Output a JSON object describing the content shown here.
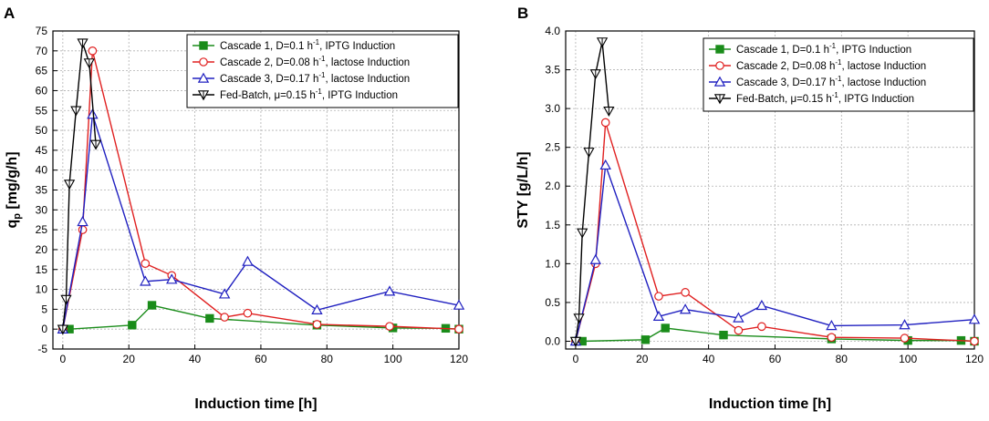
{
  "panels": [
    {
      "letter": "A",
      "chart_data": {
        "type": "line",
        "xlabel": "Induction time [h]",
        "ylabel_main": "q",
        "ylabel_sub": "p",
        "ylabel_rest": " [mg/g/h]",
        "xlim": [
          -3,
          120
        ],
        "ylim": [
          -5,
          75
        ],
        "xticks": [
          0,
          20,
          40,
          60,
          80,
          100,
          120
        ],
        "yticks": [
          -5,
          0,
          5,
          10,
          15,
          20,
          25,
          30,
          35,
          40,
          45,
          50,
          55,
          60,
          65,
          70,
          75
        ],
        "grid": true,
        "legend_position": "top-right",
        "series": [
          {
            "legend_pre": "Cascade 1, D=0.1 h",
            "legend_post": ",   IPTG Induction",
            "color": "#1a8c1a",
            "marker": "square",
            "x": [
              0,
              2,
              21,
              27,
              44.5,
              77,
              100,
              116,
              120
            ],
            "y": [
              0,
              0,
              1,
              6,
              2.7,
              1,
              0.3,
              0.2,
              0
            ]
          },
          {
            "legend_pre": "Cascade 2, D=0.08 h",
            "legend_post": ", lactose Induction",
            "color": "#e02020",
            "marker": "circle",
            "x": [
              0,
              6,
              9,
              25,
              33,
              49,
              56,
              77,
              99,
              120
            ],
            "y": [
              0,
              25,
              70,
              16.5,
              13.5,
              3,
              4,
              1.2,
              0.7,
              0
            ]
          },
          {
            "legend_pre": "Cascade 3, D=0.17 h",
            "legend_post": ", lactose Induction",
            "color": "#2020c0",
            "marker": "triangle-up",
            "x": [
              0,
              6,
              9,
              25,
              33,
              49,
              56,
              77,
              99,
              120
            ],
            "y": [
              0,
              27,
              54,
              12,
              12.5,
              8.8,
              17,
              4.8,
              9.5,
              6
            ]
          },
          {
            "legend_pre": "Fed-Batch,  μ=0.15 h",
            "legend_post": ",   IPTG Induction",
            "color": "#000000",
            "marker": "triangle-down",
            "x": [
              0,
              1,
              2,
              4,
              6,
              8,
              10
            ],
            "y": [
              0,
              7.5,
              36.5,
              55,
              72,
              67,
              46.5
            ]
          }
        ]
      }
    },
    {
      "letter": "B",
      "chart_data": {
        "type": "line",
        "xlabel": "Induction time [h]",
        "ylabel_main": "STY [g/L/h]",
        "ylabel_sub": "",
        "ylabel_rest": "",
        "xlim": [
          -3,
          120
        ],
        "ylim": [
          -0.1,
          4.0
        ],
        "xticks": [
          0,
          20,
          40,
          60,
          80,
          100,
          120
        ],
        "yticks": [
          0.0,
          0.5,
          1.0,
          1.5,
          2.0,
          2.5,
          3.0,
          3.5,
          4.0
        ],
        "grid": true,
        "legend_position": "top-right",
        "series": [
          {
            "legend_pre": "Cascade 1, D=0.1 h",
            "legend_post": ",    IPTG Induction",
            "color": "#1a8c1a",
            "marker": "square",
            "x": [
              0,
              2,
              21,
              27,
              44.5,
              77,
              100,
              116,
              120
            ],
            "y": [
              0,
              0,
              0.02,
              0.17,
              0.08,
              0.03,
              0.01,
              0.01,
              0
            ]
          },
          {
            "legend_pre": "Cascade 2, D=0.08 h",
            "legend_post": ", lactose Induction",
            "color": "#e02020",
            "marker": "circle",
            "x": [
              0,
              6,
              9,
              25,
              33,
              49,
              56,
              77,
              99,
              120
            ],
            "y": [
              0,
              1.0,
              2.82,
              0.58,
              0.63,
              0.14,
              0.19,
              0.05,
              0.04,
              0
            ]
          },
          {
            "legend_pre": "Cascade 3, D=0.17 h",
            "legend_post": ", lactose Induction",
            "color": "#2020c0",
            "marker": "triangle-up",
            "x": [
              0,
              6,
              9,
              25,
              33,
              49,
              56,
              77,
              99,
              120
            ],
            "y": [
              0,
              1.05,
              2.27,
              0.32,
              0.41,
              0.3,
              0.46,
              0.2,
              0.21,
              0.28
            ]
          },
          {
            "legend_pre": "Fed-Batch,  μ=0.15 h",
            "legend_post": ",   IPTG Induction",
            "color": "#000000",
            "marker": "triangle-down",
            "x": [
              0,
              1,
              2,
              4,
              6,
              8,
              10
            ],
            "y": [
              0,
              0.3,
              1.4,
              2.44,
              3.45,
              3.86,
              2.97
            ]
          }
        ]
      }
    }
  ],
  "superscript": "-1"
}
